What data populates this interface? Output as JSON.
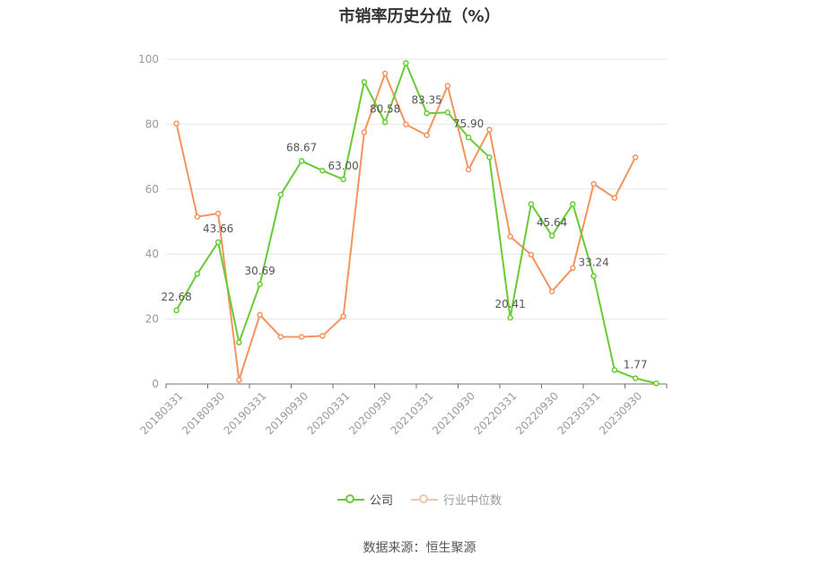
{
  "chart_data": {
    "type": "line",
    "title": "市销率历史分位（%）",
    "ylim": [
      0,
      100
    ],
    "yticks": [
      0,
      20,
      40,
      60,
      80,
      100
    ],
    "x": [
      "20180331",
      "20180630",
      "20180930",
      "20181231",
      "20190331",
      "20190630",
      "20190930",
      "20191231",
      "20200331",
      "20200630",
      "20200930",
      "20201231",
      "20210331",
      "20210630",
      "20210930",
      "20211231",
      "20220331",
      "20220630",
      "20220930",
      "20221231",
      "20230331",
      "20230630",
      "20230930",
      "20231231"
    ],
    "x_tick_labels": [
      "20180331",
      "20180930",
      "20190331",
      "20190930",
      "20200331",
      "20200930",
      "20210331",
      "20210930",
      "20220331",
      "20220930",
      "20230331",
      "20230930"
    ],
    "grid": true,
    "legend_position": "bottom",
    "series": [
      {
        "name": "公司",
        "color": "#66cc33",
        "values": [
          22.68,
          33.9,
          43.66,
          12.8,
          30.69,
          58.3,
          68.67,
          65.7,
          63.0,
          93.0,
          80.58,
          98.8,
          83.35,
          83.6,
          75.9,
          69.8,
          20.41,
          55.4,
          45.64,
          55.4,
          33.24,
          4.3,
          1.77,
          0.2
        ],
        "labels": {
          "0": "22.68",
          "2": "43.66",
          "4": "30.69",
          "6": "68.67",
          "8": "63.00",
          "10": "80.58",
          "12": "83.35",
          "14": "75.90",
          "16": "20.41",
          "18": "45.64",
          "20": "33.24",
          "22": "1.77"
        }
      },
      {
        "name": "行业中位数",
        "color": "#f4935d",
        "values": [
          80.2,
          51.5,
          52.5,
          1.2,
          21.3,
          14.5,
          14.5,
          14.8,
          20.8,
          77.5,
          95.6,
          79.9,
          76.6,
          91.8,
          66.0,
          78.3,
          45.4,
          39.8,
          28.5,
          35.7,
          61.6,
          57.3,
          69.8,
          null
        ]
      }
    ]
  },
  "source": "数据来源：恒生聚源"
}
